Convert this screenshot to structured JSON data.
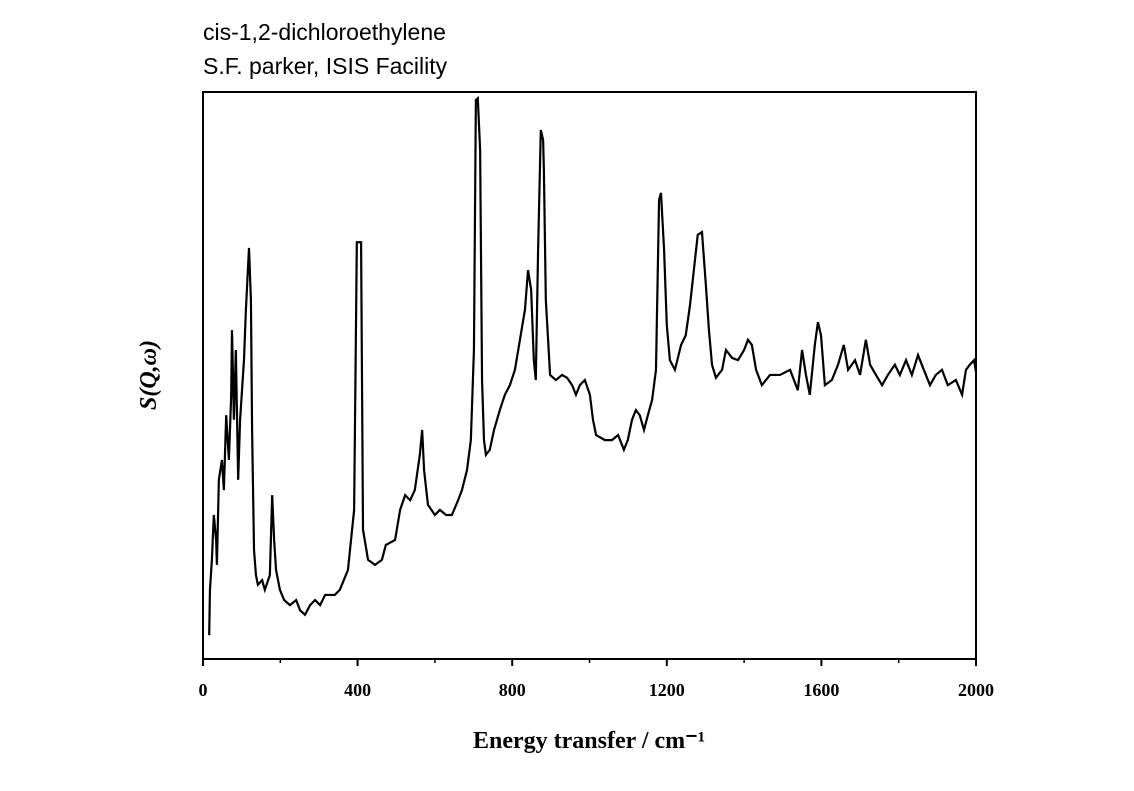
{
  "chart_data": {
    "type": "line",
    "title": "cis-1,2-dichloroethylene",
    "subtitle": "S.F. parker, ISIS Facility",
    "x_label": "Energy transfer / cm⁻¹",
    "y_label": "S(Q,ω)",
    "xlim": [
      0,
      2000
    ],
    "xticks": [
      0,
      400,
      800,
      1200,
      1600,
      2000
    ],
    "xminorticks": [
      200,
      600,
      1000,
      1400,
      1800
    ],
    "ylim": [
      0,
      100
    ],
    "x": [
      16,
      18,
      23,
      28,
      34,
      36,
      41,
      49,
      54,
      60,
      67,
      73,
      75,
      80,
      85,
      91,
      96,
      106,
      111,
      119,
      124,
      127,
      132,
      137,
      142,
      153,
      160,
      173,
      179,
      184,
      189,
      199,
      210,
      225,
      241,
      251,
      264,
      277,
      290,
      303,
      316,
      341,
      354,
      375,
      391,
      398,
      409,
      414,
      427,
      445,
      463,
      473,
      497,
      510,
      523,
      536,
      548,
      561,
      567,
      572,
      582,
      600,
      613,
      629,
      644,
      660,
      670,
      683,
      693,
      701,
      706,
      711,
      717,
      722,
      727,
      732,
      742,
      753,
      768,
      781,
      794,
      807,
      820,
      833,
      841,
      849,
      856,
      861,
      867,
      874,
      880,
      882,
      887,
      898,
      913,
      929,
      942,
      955,
      965,
      975,
      988,
      1001,
      1009,
      1017,
      1040,
      1058,
      1074,
      1089,
      1099,
      1110,
      1120,
      1130,
      1141,
      1151,
      1162,
      1172,
      1180,
      1185,
      1193,
      1200,
      1208,
      1221,
      1237,
      1249,
      1260,
      1270,
      1280,
      1291,
      1301,
      1309,
      1317,
      1327,
      1343,
      1353,
      1369,
      1384,
      1400,
      1410,
      1420,
      1431,
      1446,
      1467,
      1493,
      1519,
      1539,
      1550,
      1560,
      1570,
      1583,
      1591,
      1599,
      1609,
      1627,
      1643,
      1658,
      1669,
      1687,
      1700,
      1715,
      1726,
      1741,
      1757,
      1772,
      1790,
      1803,
      1819,
      1834,
      1850,
      1865,
      1881,
      1896,
      1912,
      1927,
      1948,
      1964,
      1974,
      1984,
      1995,
      2000
    ],
    "series": [
      {
        "color": "#000000",
        "values": [
          4.2,
          12.2,
          17.5,
          25.4,
          21.0,
          16.6,
          31.6,
          35.1,
          29.8,
          43.0,
          35.1,
          46.6,
          58.0,
          42.2,
          54.5,
          31.6,
          42.2,
          52.7,
          61.6,
          72.5,
          63.3,
          40.4,
          19.2,
          14.8,
          13.1,
          13.9,
          12.2,
          14.8,
          28.9,
          21.0,
          15.7,
          12.2,
          10.4,
          9.5,
          10.4,
          8.6,
          7.8,
          9.5,
          10.4,
          9.5,
          11.3,
          11.3,
          12.2,
          15.7,
          26.3,
          73.5,
          73.5,
          22.8,
          17.5,
          16.6,
          17.5,
          20.1,
          21.0,
          26.3,
          28.9,
          28.0,
          29.8,
          36.0,
          40.4,
          33.3,
          27.2,
          25.4,
          26.3,
          25.4,
          25.4,
          28.0,
          29.8,
          33.3,
          38.6,
          54.5,
          98.6,
          98.9,
          89.8,
          49.2,
          38.6,
          36.0,
          36.9,
          40.4,
          43.9,
          46.6,
          48.3,
          51.0,
          56.3,
          61.6,
          68.6,
          65.1,
          52.7,
          49.2,
          72.1,
          93.3,
          91.5,
          86.2,
          63.3,
          50.1,
          49.2,
          50.1,
          49.6,
          48.3,
          46.6,
          48.3,
          49.2,
          46.6,
          42.2,
          39.5,
          38.6,
          38.6,
          39.5,
          36.9,
          38.6,
          42.2,
          43.9,
          43.0,
          40.4,
          43.0,
          45.7,
          51.0,
          81.0,
          82.2,
          72.1,
          58.9,
          52.7,
          51.0,
          55.4,
          57.1,
          62.4,
          68.6,
          74.8,
          75.3,
          66.0,
          58.0,
          51.9,
          49.6,
          51.0,
          54.5,
          53.1,
          52.7,
          54.5,
          56.3,
          55.4,
          51.0,
          48.3,
          50.1,
          50.1,
          51.0,
          47.4,
          54.5,
          50.1,
          46.6,
          55.4,
          59.4,
          57.1,
          48.3,
          49.2,
          51.9,
          55.4,
          51.0,
          52.7,
          50.1,
          56.3,
          51.9,
          50.1,
          48.3,
          50.1,
          51.9,
          50.1,
          52.7,
          50.1,
          53.6,
          51.0,
          48.3,
          50.1,
          51.0,
          48.3,
          49.2,
          46.6,
          51.0,
          51.9,
          52.7,
          50.6
        ]
      }
    ]
  }
}
